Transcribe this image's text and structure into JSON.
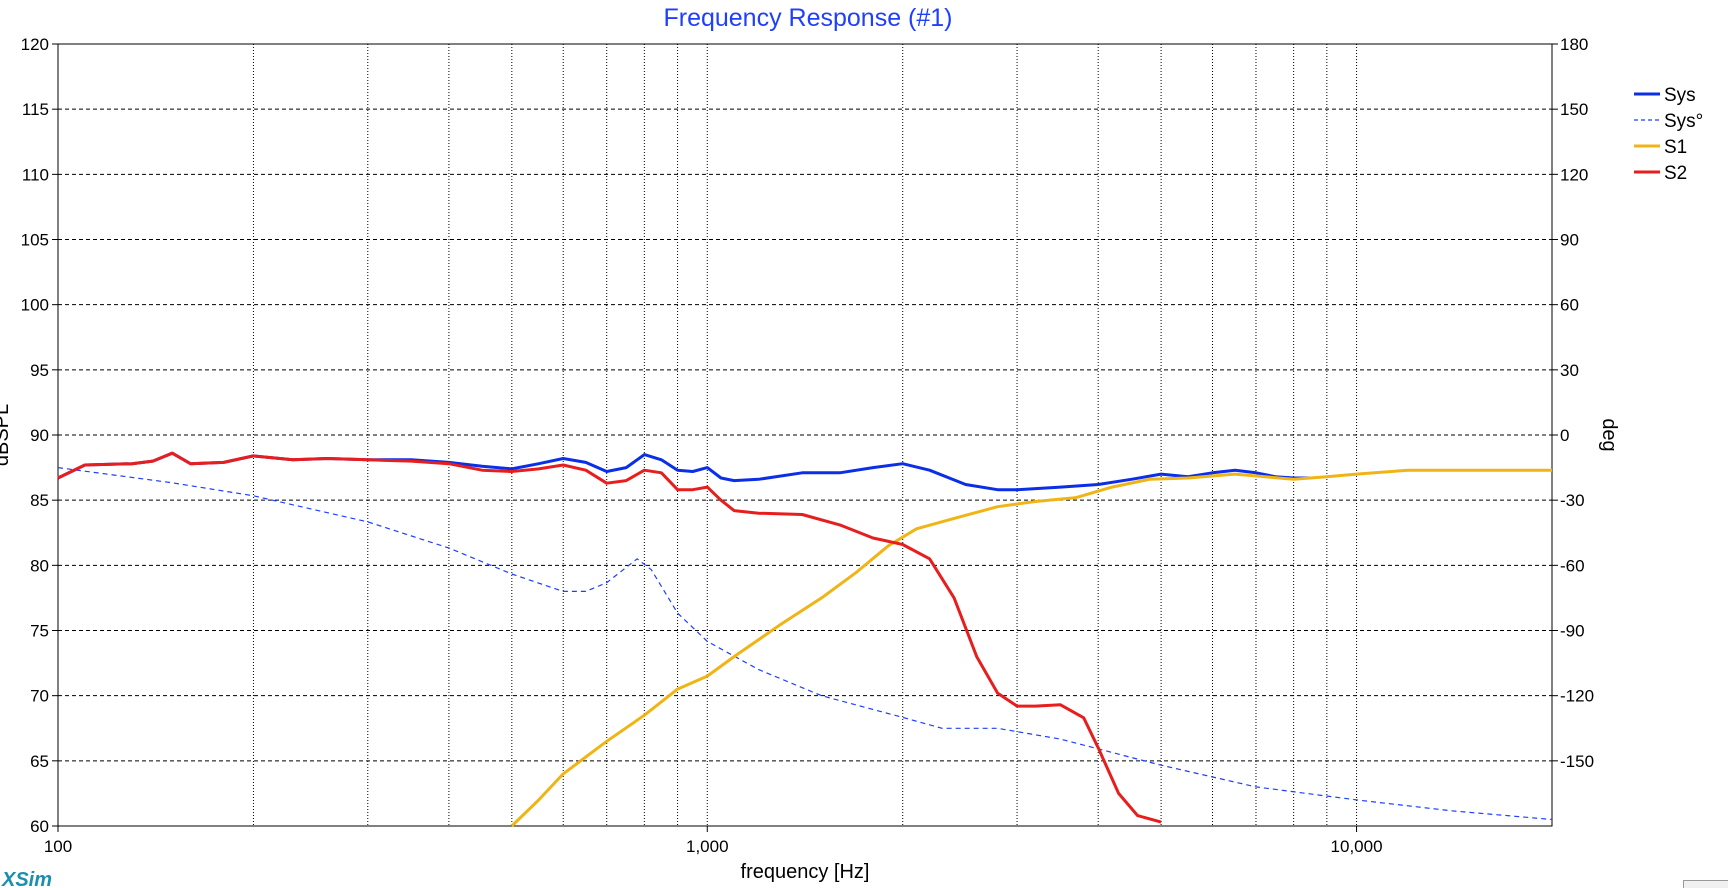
{
  "chart_data": {
    "type": "line",
    "title": "Frequency Response (#1)",
    "xlabel": "frequency [Hz]",
    "ylabel": "dBSPL",
    "y2label": "deg",
    "x_scale": "log",
    "xlim": [
      100,
      20000
    ],
    "ylim": [
      60,
      120
    ],
    "y2lim": [
      -180,
      180
    ],
    "x_ticks": [
      {
        "value": 100,
        "label": "100"
      },
      {
        "value": 1000,
        "label": "1,000"
      },
      {
        "value": 10000,
        "label": "10,000"
      }
    ],
    "y_ticks": [
      {
        "value": 120,
        "label": "120"
      },
      {
        "value": 115,
        "label": "115"
      },
      {
        "value": 110,
        "label": "110"
      },
      {
        "value": 105,
        "label": "105"
      },
      {
        "value": 100,
        "label": "100"
      },
      {
        "value": 95,
        "label": "95"
      },
      {
        "value": 90,
        "label": "90"
      },
      {
        "value": 85,
        "label": "85"
      },
      {
        "value": 80,
        "label": "80"
      },
      {
        "value": 75,
        "label": "75"
      },
      {
        "value": 70,
        "label": "70"
      },
      {
        "value": 65,
        "label": "65"
      },
      {
        "value": 60,
        "label": "60"
      }
    ],
    "y2_ticks": [
      {
        "value": 180,
        "label": "180"
      },
      {
        "value": 150,
        "label": "150"
      },
      {
        "value": 120,
        "label": "120"
      },
      {
        "value": 90,
        "label": "90"
      },
      {
        "value": 60,
        "label": "60"
      },
      {
        "value": 30,
        "label": "30"
      },
      {
        "value": 0,
        "label": "0"
      },
      {
        "value": -30,
        "label": "-30"
      },
      {
        "value": -60,
        "label": "-60"
      },
      {
        "value": -90,
        "label": "-90"
      },
      {
        "value": -120,
        "label": "-120"
      },
      {
        "value": -150,
        "label": "-150"
      }
    ],
    "grid": true,
    "legend_position": "right",
    "series": [
      {
        "name": "Sys",
        "color": "#0a2fe6",
        "width": 3,
        "dash": "",
        "axis": "left",
        "points": [
          [
            100,
            86.7
          ],
          [
            110,
            87.7
          ],
          [
            130,
            87.8
          ],
          [
            140,
            88
          ],
          [
            150,
            88.6
          ],
          [
            160,
            87.8
          ],
          [
            180,
            87.9
          ],
          [
            200,
            88.4
          ],
          [
            230,
            88.1
          ],
          [
            260,
            88.2
          ],
          [
            300,
            88.1
          ],
          [
            350,
            88.1
          ],
          [
            400,
            87.9
          ],
          [
            450,
            87.6
          ],
          [
            500,
            87.4
          ],
          [
            550,
            87.8
          ],
          [
            600,
            88.2
          ],
          [
            650,
            87.9
          ],
          [
            700,
            87.2
          ],
          [
            750,
            87.5
          ],
          [
            800,
            88.5
          ],
          [
            850,
            88.1
          ],
          [
            900,
            87.3
          ],
          [
            950,
            87.2
          ],
          [
            1000,
            87.5
          ],
          [
            1050,
            86.7
          ],
          [
            1100,
            86.5
          ],
          [
            1200,
            86.6
          ],
          [
            1400,
            87.1
          ],
          [
            1600,
            87.1
          ],
          [
            1800,
            87.5
          ],
          [
            2000,
            87.8
          ],
          [
            2200,
            87.3
          ],
          [
            2500,
            86.2
          ],
          [
            2800,
            85.8
          ],
          [
            3000,
            85.8
          ],
          [
            3500,
            86
          ],
          [
            4000,
            86.2
          ],
          [
            4500,
            86.6
          ],
          [
            5000,
            87
          ],
          [
            5500,
            86.8
          ],
          [
            6000,
            87.1
          ],
          [
            6500,
            87.3
          ],
          [
            7000,
            87.1
          ],
          [
            7500,
            86.8
          ],
          [
            8000,
            86.7
          ],
          [
            8500,
            86.7
          ]
        ]
      },
      {
        "name": "Sys°",
        "color": "#1f3fff",
        "width": 1.2,
        "dash": "5,4",
        "axis": "right",
        "points": [
          [
            100,
            -15
          ],
          [
            150,
            -22
          ],
          [
            200,
            -28
          ],
          [
            300,
            -40
          ],
          [
            400,
            -52
          ],
          [
            500,
            -64
          ],
          [
            600,
            -72
          ],
          [
            650,
            -72
          ],
          [
            700,
            -68
          ],
          [
            780,
            -57
          ],
          [
            820,
            -62
          ],
          [
            900,
            -82
          ],
          [
            1000,
            -95
          ],
          [
            1200,
            -108
          ],
          [
            1500,
            -120
          ],
          [
            2000,
            -130
          ],
          [
            2300,
            -135
          ],
          [
            2800,
            -135
          ],
          [
            3500,
            -140
          ],
          [
            5000,
            -152
          ],
          [
            7000,
            -162
          ],
          [
            10000,
            -168
          ],
          [
            14000,
            -173
          ],
          [
            20000,
            -177
          ]
        ]
      },
      {
        "name": "S1",
        "color": "#f0b414",
        "width": 3,
        "dash": "",
        "axis": "left",
        "points": [
          [
            500,
            60
          ],
          [
            550,
            62
          ],
          [
            600,
            64
          ],
          [
            700,
            66.5
          ],
          [
            800,
            68.5
          ],
          [
            900,
            70.5
          ],
          [
            1000,
            71.5
          ],
          [
            1100,
            73
          ],
          [
            1300,
            75.5
          ],
          [
            1500,
            77.5
          ],
          [
            1700,
            79.5
          ],
          [
            1900,
            81.5
          ],
          [
            2100,
            82.8
          ],
          [
            2400,
            83.6
          ],
          [
            2800,
            84.5
          ],
          [
            3200,
            84.9
          ],
          [
            3700,
            85.2
          ],
          [
            4200,
            86
          ],
          [
            4800,
            86.6
          ],
          [
            5500,
            86.7
          ],
          [
            6500,
            87
          ],
          [
            8000,
            86.6
          ],
          [
            9000,
            86.8
          ],
          [
            10000,
            87
          ],
          [
            12000,
            87.3
          ],
          [
            15000,
            87.3
          ],
          [
            20000,
            87.3
          ]
        ]
      },
      {
        "name": "S2",
        "color": "#e81e1e",
        "width": 3,
        "dash": "",
        "axis": "left",
        "points": [
          [
            100,
            86.7
          ],
          [
            110,
            87.7
          ],
          [
            130,
            87.8
          ],
          [
            140,
            88
          ],
          [
            150,
            88.6
          ],
          [
            160,
            87.8
          ],
          [
            180,
            87.9
          ],
          [
            200,
            88.4
          ],
          [
            230,
            88.1
          ],
          [
            260,
            88.2
          ],
          [
            300,
            88.1
          ],
          [
            350,
            88
          ],
          [
            400,
            87.8
          ],
          [
            450,
            87.3
          ],
          [
            500,
            87.2
          ],
          [
            550,
            87.4
          ],
          [
            600,
            87.7
          ],
          [
            650,
            87.3
          ],
          [
            700,
            86.3
          ],
          [
            750,
            86.5
          ],
          [
            800,
            87.3
          ],
          [
            850,
            87.1
          ],
          [
            900,
            85.8
          ],
          [
            950,
            85.8
          ],
          [
            1000,
            86
          ],
          [
            1050,
            85
          ],
          [
            1100,
            84.2
          ],
          [
            1200,
            84
          ],
          [
            1400,
            83.9
          ],
          [
            1600,
            83.1
          ],
          [
            1800,
            82.1
          ],
          [
            2000,
            81.6
          ],
          [
            2200,
            80.5
          ],
          [
            2400,
            77.5
          ],
          [
            2600,
            73
          ],
          [
            2800,
            70.2
          ],
          [
            3000,
            69.2
          ],
          [
            3200,
            69.2
          ],
          [
            3500,
            69.3
          ],
          [
            3800,
            68.3
          ],
          [
            4000,
            66
          ],
          [
            4300,
            62.5
          ],
          [
            4600,
            60.8
          ],
          [
            5000,
            60.3
          ]
        ]
      }
    ]
  },
  "brand": "XSim"
}
